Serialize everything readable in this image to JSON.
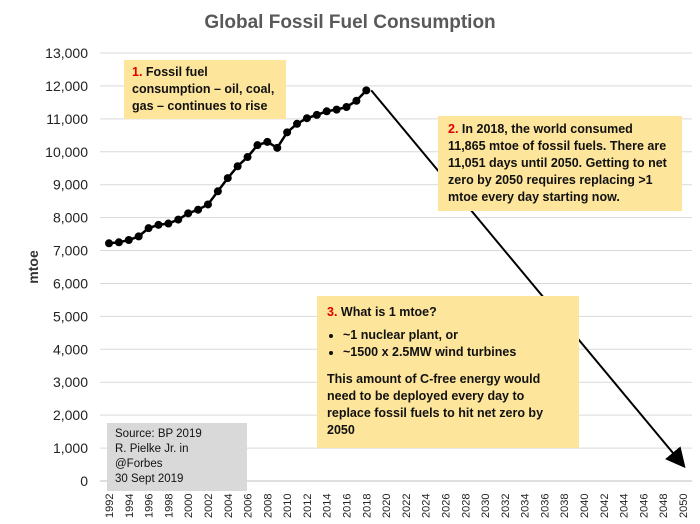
{
  "chart_data": {
    "type": "line",
    "title": "Global Fossil Fuel Consumption",
    "ylabel": "mtoe",
    "xlabel": "",
    "ylim": [
      0,
      13000
    ],
    "xlim": [
      1992,
      2050
    ],
    "grid": "horizontal",
    "yticks": [
      "0",
      "1,000",
      "2,000",
      "3,000",
      "4,000",
      "5,000",
      "6,000",
      "7,000",
      "8,000",
      "9,000",
      "10,000",
      "11,000",
      "12,000",
      "13,000"
    ],
    "xticks": [
      "1992",
      "1994",
      "1996",
      "1998",
      "2000",
      "2002",
      "2004",
      "2006",
      "2008",
      "2010",
      "2012",
      "2014",
      "2016",
      "2018",
      "2020",
      "2022",
      "2024",
      "2026",
      "2028",
      "2030",
      "2032",
      "2034",
      "2036",
      "2038",
      "2040",
      "2042",
      "2044",
      "2046",
      "2048",
      "2050"
    ],
    "x": [
      1992,
      1993,
      1994,
      1995,
      1996,
      1997,
      1998,
      1999,
      2000,
      2001,
      2002,
      2003,
      2004,
      2005,
      2006,
      2007,
      2008,
      2009,
      2010,
      2011,
      2012,
      2013,
      2014,
      2015,
      2016,
      2017,
      2018
    ],
    "values": [
      7220,
      7250,
      7320,
      7430,
      7680,
      7780,
      7820,
      7940,
      8130,
      8240,
      8400,
      8800,
      9200,
      9560,
      9840,
      10200,
      10300,
      10120,
      10590,
      10850,
      11020,
      11120,
      11230,
      11280,
      11360,
      11550,
      11865
    ],
    "arrow": {
      "from": [
        2018.5,
        11865
      ],
      "to": [
        2050,
        0
      ]
    },
    "colors": {
      "line": "#000000",
      "grid": "#d9d9d9",
      "annotation": "#fde59b",
      "source_box": "#d9d9d9",
      "number": "#e00000"
    }
  },
  "annotations": {
    "a1": {
      "num": "1.",
      "text": "Fossil fuel consumption – oil, coal, gas – continues to rise"
    },
    "a2": {
      "num": "2.",
      "text": "In 2018, the world consumed 11,865 mtoe of fossil fuels.  There are 11,051 days until 2050. Getting to net zero by 2050 requires replacing >1 mtoe every day starting now."
    },
    "a3": {
      "num": "3.",
      "title": "What is 1 mtoe?",
      "bullets": [
        "~1 nuclear plant, or",
        "~1500 x 2.5MW wind turbines"
      ],
      "text": "This amount of C-free energy would need to be deployed every day to replace fossil fuels to hit net zero by 2050"
    }
  },
  "source": {
    "line1": "Source: BP 2019",
    "line2": "R. Pielke Jr. in @Forbes",
    "line3": "30 Sept 2019"
  }
}
